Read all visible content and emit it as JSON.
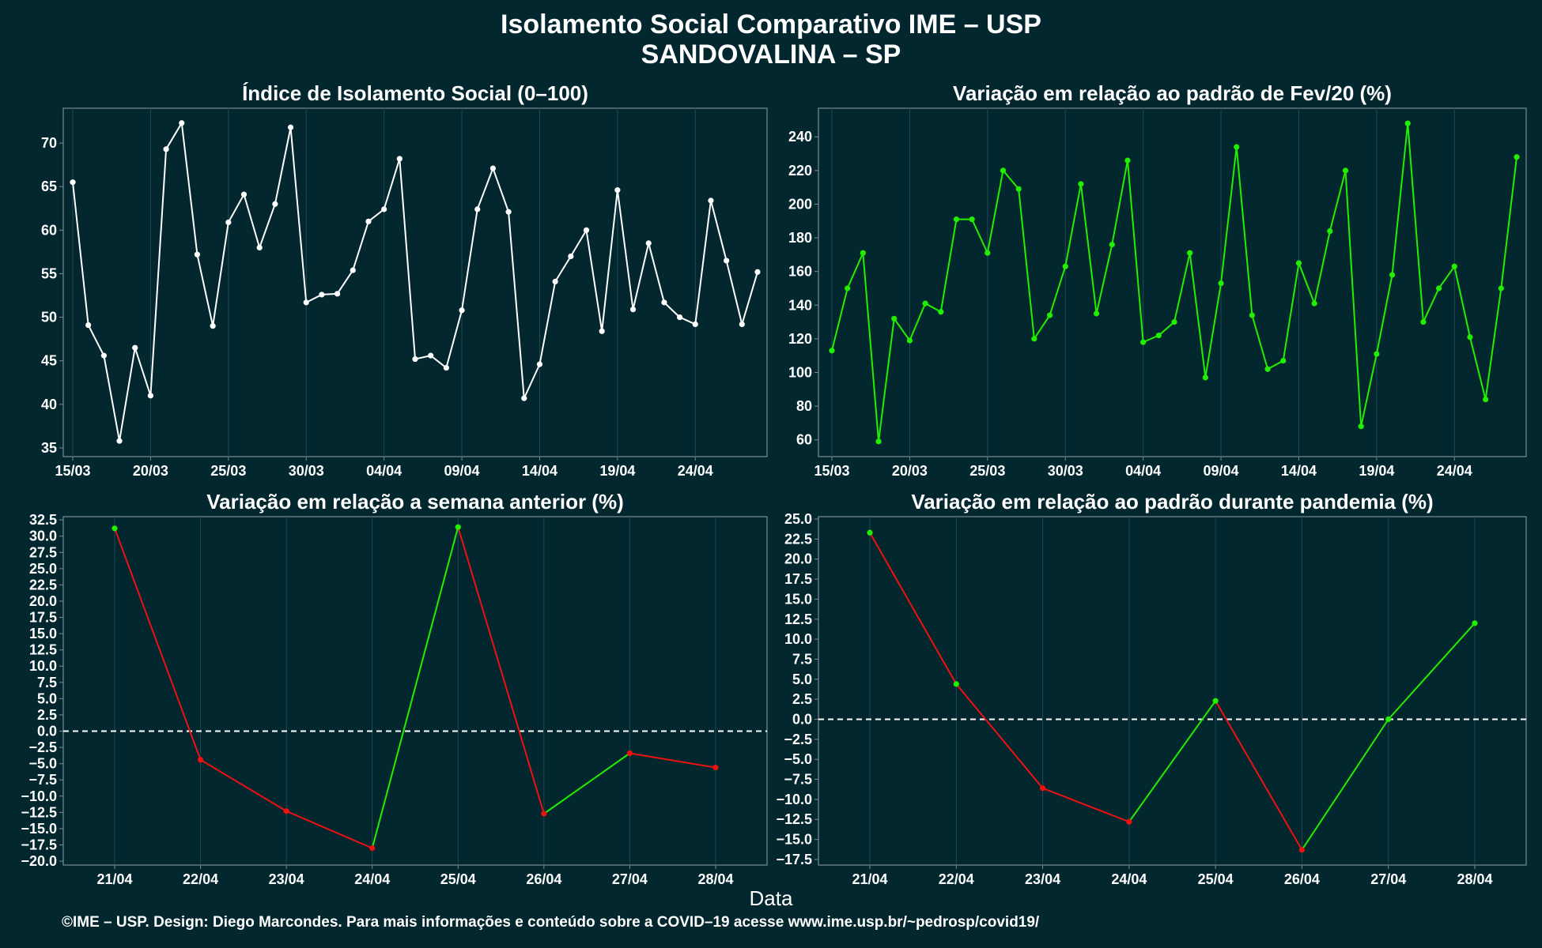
{
  "header": {
    "title_line1": "Isolamento Social Comparativo IME – USP",
    "title_line2": "SANDOVALINA – SP"
  },
  "x_axis_label": "Data",
  "footer": "©IME – USP. Design: Diego Marcondes. Para mais informações e conteúdo sobre a COVID–19 acesse www.ime.usp.br/~pedrosp/covid19/",
  "colors": {
    "background": "#02272f",
    "panel_border": "#7a8c90",
    "grid": "#1f4a52",
    "white_series": "#ffffff",
    "positive": "#22ee00",
    "negative": "#ee1111",
    "zero_line": "#ffffff"
  },
  "chart_data": [
    {
      "type": "line",
      "title": "Índice de Isolamento Social (0–100)",
      "x": [
        "15/03",
        "16/03",
        "17/03",
        "18/03",
        "19/03",
        "20/03",
        "21/03",
        "22/03",
        "23/03",
        "24/03",
        "25/03",
        "26/03",
        "27/03",
        "28/03",
        "29/03",
        "30/03",
        "31/03",
        "01/04",
        "02/04",
        "03/04",
        "04/04",
        "05/04",
        "06/04",
        "07/04",
        "08/04",
        "09/04",
        "10/04",
        "11/04",
        "12/04",
        "13/04",
        "14/04",
        "15/04",
        "16/04",
        "17/04",
        "18/04",
        "19/04",
        "20/04",
        "21/04",
        "22/04",
        "23/04",
        "24/04",
        "25/04",
        "26/04",
        "27/04",
        "28/04"
      ],
      "values": [
        65.5,
        49.1,
        45.6,
        35.8,
        46.5,
        41.0,
        69.3,
        72.3,
        57.2,
        49.0,
        60.9,
        64.1,
        58.0,
        63.0,
        71.8,
        51.7,
        52.6,
        52.7,
        55.4,
        61.0,
        62.4,
        68.2,
        45.2,
        45.6,
        44.2,
        50.8,
        62.4,
        67.1,
        62.1,
        40.7,
        44.6,
        54.1,
        57.0,
        60.0,
        48.4,
        64.6,
        50.9,
        58.5,
        51.7,
        50.0,
        49.2,
        63.4,
        56.5,
        49.2,
        55.2
      ],
      "x_ticks": [
        "15/03",
        "20/03",
        "25/03",
        "30/03",
        "04/04",
        "09/04",
        "14/04",
        "19/04",
        "24/04"
      ],
      "y_ticks": [
        35,
        40,
        45,
        50,
        55,
        60,
        65,
        70
      ],
      "ylim": [
        34,
        74
      ],
      "color": "white"
    },
    {
      "type": "line",
      "title": "Variação em relação ao padrão de Fev/20 (%)",
      "x": [
        "15/03",
        "16/03",
        "17/03",
        "18/03",
        "19/03",
        "20/03",
        "21/03",
        "22/03",
        "23/03",
        "24/03",
        "25/03",
        "26/03",
        "27/03",
        "28/03",
        "29/03",
        "30/03",
        "31/03",
        "01/04",
        "02/04",
        "03/04",
        "04/04",
        "05/04",
        "06/04",
        "07/04",
        "08/04",
        "09/04",
        "10/04",
        "11/04",
        "12/04",
        "13/04",
        "14/04",
        "15/04",
        "16/04",
        "17/04",
        "18/04",
        "19/04",
        "20/04",
        "21/04",
        "22/04",
        "23/04",
        "24/04",
        "25/04",
        "26/04",
        "27/04",
        "28/04"
      ],
      "values": [
        113,
        150,
        171,
        59,
        132,
        119,
        141,
        136,
        191,
        191,
        171,
        220,
        209,
        120,
        134,
        163,
        212,
        135,
        176,
        226,
        118,
        122,
        130,
        171,
        97,
        153,
        234,
        134,
        102,
        107,
        165,
        141,
        184,
        220,
        68,
        111,
        158,
        248,
        130,
        150,
        163,
        121,
        84,
        150,
        228
      ],
      "x_ticks": [
        "15/03",
        "20/03",
        "25/03",
        "30/03",
        "04/04",
        "09/04",
        "14/04",
        "19/04",
        "24/04"
      ],
      "y_ticks": [
        60,
        80,
        100,
        120,
        140,
        160,
        180,
        200,
        220,
        240
      ],
      "ylim": [
        50,
        257
      ],
      "color": "green"
    },
    {
      "type": "line",
      "title": "Variação em relação a semana anterior (%)",
      "x": [
        "21/04",
        "22/04",
        "23/04",
        "24/04",
        "25/04",
        "26/04",
        "27/04",
        "28/04"
      ],
      "values": [
        31.2,
        -4.4,
        -12.3,
        -18.0,
        31.4,
        -12.7,
        -3.4,
        -5.6
      ],
      "y_ticks": [
        -20,
        -17.5,
        -15,
        -12.5,
        -10,
        -7.5,
        -5,
        -2.5,
        0,
        2.5,
        5,
        7.5,
        10,
        12.5,
        15,
        17.5,
        20,
        22.5,
        25,
        27.5,
        30,
        32.5
      ],
      "y_tick_labels": [
        "−20.0",
        "−17.5",
        "−15.0",
        "−12.5",
        "−10.0",
        "−7.5",
        "−5.0",
        "−2.5",
        "0.0",
        "2.5",
        "5.0",
        "7.5",
        "10.0",
        "12.5",
        "15.0",
        "17.5",
        "20.0",
        "22.5",
        "25.0",
        "27.5",
        "30.0",
        "32.5"
      ],
      "ylim": [
        -20.6,
        33.0
      ],
      "reference_line": 0,
      "color": "green above zero, red below zero"
    },
    {
      "type": "line",
      "title": "Variação em relação ao padrão durante pandemia (%)",
      "x": [
        "21/04",
        "22/04",
        "23/04",
        "24/04",
        "25/04",
        "26/04",
        "27/04",
        "28/04"
      ],
      "values": [
        23.3,
        4.4,
        -8.6,
        -12.8,
        2.3,
        -16.3,
        0.0,
        12.0
      ],
      "y_ticks": [
        -17.5,
        -15,
        -12.5,
        -10,
        -7.5,
        -5,
        -2.5,
        0,
        2.5,
        5,
        7.5,
        10,
        12.5,
        15,
        17.5,
        20,
        22.5,
        25
      ],
      "y_tick_labels": [
        "−17.5",
        "−15.0",
        "−12.5",
        "−10.0",
        "−7.5",
        "−5.0",
        "−2.5",
        "0.0",
        "2.5",
        "5.0",
        "7.5",
        "10.0",
        "12.5",
        "15.0",
        "17.5",
        "20.0",
        "22.5",
        "25.0"
      ],
      "ylim": [
        -18.2,
        25.3
      ],
      "reference_line": 0,
      "color": "green above zero, red below zero"
    }
  ]
}
